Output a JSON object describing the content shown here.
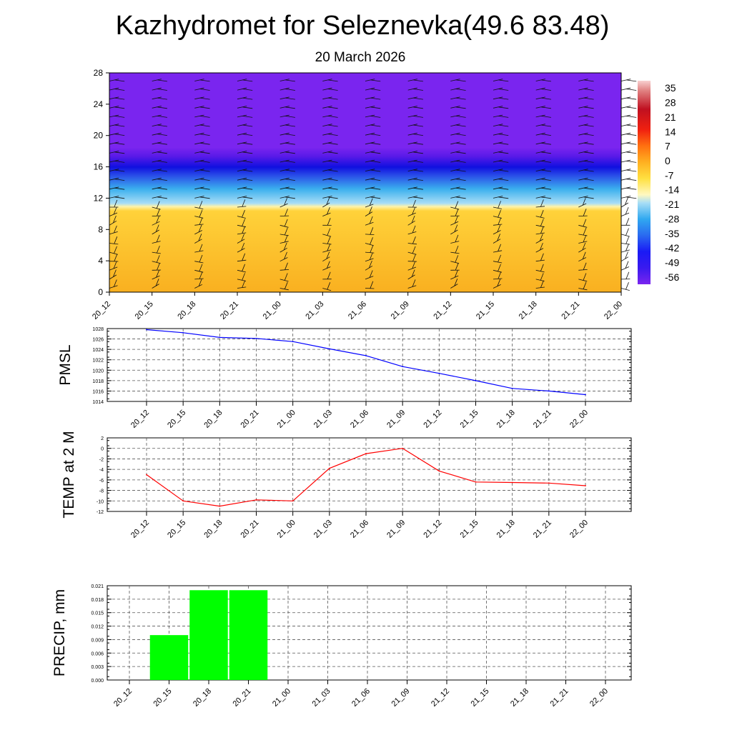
{
  "title": "Kazhydromet for Seleznevka(49.6 83.48)",
  "subtitle": "20 March 2026",
  "time_labels": [
    "20_12",
    "20_15",
    "20_18",
    "20_21",
    "21_00",
    "21_03",
    "21_06",
    "21_09",
    "21_12",
    "21_15",
    "21_18",
    "21_21",
    "22_00"
  ],
  "colors": {
    "pressure_line": "#0000ff",
    "temp_line": "#ff0000",
    "precip_bar": "#00ff00",
    "grid": "#555555"
  },
  "chart_data": [
    {
      "type": "heatmap",
      "name": "upper-air-temperature-wind",
      "ylim": [
        0,
        28
      ],
      "yticks": [
        "0",
        "4",
        "8",
        "12",
        "16",
        "20",
        "24",
        "28"
      ],
      "colorbar": {
        "labels": [
          "35",
          "28",
          "21",
          "14",
          "7",
          "0",
          "-7",
          "-14",
          "-21",
          "-28",
          "-35",
          "-42",
          "-49",
          "-56"
        ],
        "range": [
          -60,
          40
        ]
      },
      "layers": [
        {
          "level": 0,
          "temp": -3
        },
        {
          "level": 10.5,
          "temp": -8
        },
        {
          "level": 11.2,
          "temp": -15
        },
        {
          "level": 14,
          "temp": -30
        },
        {
          "level": 16,
          "temp": -50
        },
        {
          "level": 18,
          "temp": -58
        },
        {
          "level": 28,
          "temp": -62
        }
      ],
      "wind_barbs": "wind barbs drawn at every time step and level"
    },
    {
      "type": "line",
      "name": "pmsl",
      "ylabel": "PMSL",
      "ylim": [
        1014,
        1028
      ],
      "yticks": [
        "1014",
        "1016",
        "1018",
        "1020",
        "1022",
        "1024",
        "1026",
        "1028"
      ],
      "values": [
        1027.8,
        1027.2,
        1026.3,
        1026.1,
        1025.5,
        1024.1,
        1022.8,
        1020.7,
        1019.4,
        1018.0,
        1016.5,
        1016.0,
        1015.3
      ]
    },
    {
      "type": "line",
      "name": "temp-2m",
      "ylabel": "TEMP at 2 M",
      "ylim": [
        -12,
        2
      ],
      "yticks": [
        "-12",
        "-10",
        "-8",
        "-6",
        "-4",
        "-2",
        "0",
        "2"
      ],
      "values": [
        -5.0,
        -10.0,
        -11.0,
        -9.8,
        -10.0,
        -3.8,
        -1.0,
        0.0,
        -4.3,
        -6.4,
        -6.5,
        -6.6,
        -7.1
      ]
    },
    {
      "type": "bar",
      "name": "precip",
      "ylabel": "PRECIP, mm",
      "ylim": [
        0,
        0.021
      ],
      "yticks": [
        "0.000",
        "0.003",
        "0.006",
        "0.009",
        "0.012",
        "0.015",
        "0.018",
        "0.021"
      ],
      "values": [
        0,
        0.01,
        0.02,
        0.02,
        0,
        0,
        0,
        0,
        0,
        0,
        0,
        0,
        0
      ]
    }
  ]
}
